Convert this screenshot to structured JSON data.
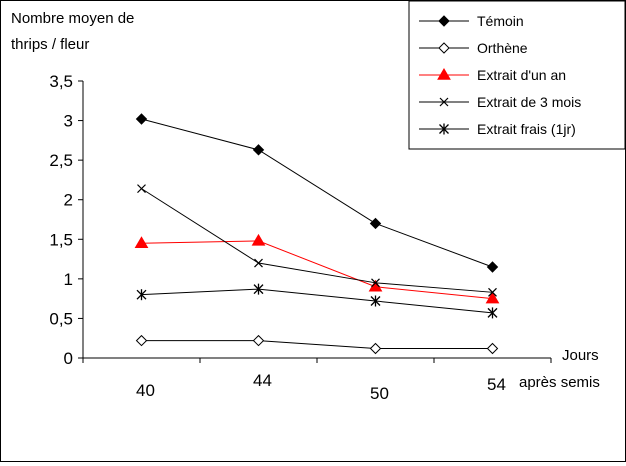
{
  "chart_data": {
    "type": "line",
    "title": "",
    "ylabel_line1": "Nombre moyen de",
    "ylabel_line2": "thrips / fleur",
    "xlabel_line1": "Jours",
    "xlabel_line2": "après semis",
    "categories": [
      "40",
      "44",
      "50",
      "54"
    ],
    "ylim": [
      0,
      3.5
    ],
    "yticks": [
      "0",
      "0,5",
      "1",
      "1,5",
      "2",
      "2,5",
      "3",
      "3,5"
    ],
    "grid": false,
    "legend_position": "top-right",
    "series": [
      {
        "name": "Témoin",
        "values": [
          3.02,
          2.63,
          1.7,
          1.15
        ],
        "color": "#000000",
        "marker": "diamond-filled"
      },
      {
        "name": "Orthène",
        "values": [
          0.22,
          0.22,
          0.12,
          0.12
        ],
        "color": "#000000",
        "marker": "diamond-open"
      },
      {
        "name": "Extrait d'un an",
        "values": [
          1.45,
          1.48,
          0.9,
          0.75
        ],
        "color": "#ff0000",
        "marker": "triangle-filled"
      },
      {
        "name": "Extrait de 3 mois",
        "values": [
          2.14,
          1.2,
          0.95,
          0.83
        ],
        "color": "#000000",
        "marker": "x"
      },
      {
        "name": "Extrait frais (1jr)",
        "values": [
          0.8,
          0.87,
          0.72,
          0.57
        ],
        "color": "#000000",
        "marker": "star"
      }
    ]
  }
}
